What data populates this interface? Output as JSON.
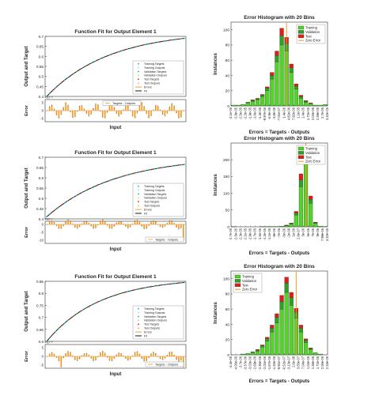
{
  "colors": {
    "training": "#2aa7d8",
    "validation": "#2bb24c",
    "test": "#e0241b",
    "fit": "#000000",
    "errors": "#f7941d",
    "zero_error": "#f7941d",
    "hist_training": "#55d12c",
    "hist_validation": "#2f9e2a",
    "hist_test": "#e21b1b"
  },
  "chart_data": [
    {
      "type": "line",
      "title": "Function Fit for Output Element 1",
      "ylabel": "Output and Target",
      "ylim": [
        0.4,
        0.7
      ],
      "yticks": [
        "0.4",
        "0.45",
        "0.5",
        "0.55",
        "0.6",
        "0.65",
        "0.7"
      ],
      "legend": [
        "Training Targets",
        "Training Outputs",
        "Validation Targets",
        "Validation Outputs",
        "Test Targets",
        "Test Outputs",
        "Errors",
        "Fit"
      ],
      "legend_position": "bottom-right",
      "curve": {
        "start": 0.4,
        "end": 0.69,
        "shape": 2.2
      },
      "error_panel": {
        "ylabel": "Error",
        "xlabel": "Input",
        "yticks": [
          "5",
          "0",
          "-5"
        ],
        "scale": "×10⁻⁴",
        "legend": "Targets - Outputs",
        "legend_position": "top",
        "pattern": {
          "amp": 5,
          "cycles": 9,
          "bars": 60,
          "spike": null
        }
      }
    },
    {
      "type": "bar",
      "title": "Error Histogram with 20 Bins",
      "ylabel": "Instances",
      "xlabel": "Errors = Targets - Outputs",
      "ylim": [
        0,
        110
      ],
      "yticks": [
        0,
        20,
        40,
        60,
        80,
        100
      ],
      "categories": [
        "-3.1e-05",
        "-2.9e-05",
        "-2.5e-05",
        "-2.2e-05",
        "-1.9e-05",
        "-1.6e-05",
        "-1.3e-05",
        "-9.97e-06",
        "-6.9e-06",
        "-3.8e-06",
        "-7.01e-07",
        "2.39e-06",
        "5.48e-06",
        "8.57e-06",
        "1.17e-05",
        "1.48e-05",
        "1.79e-05",
        "2.09e-05",
        "2.4e-05",
        "2.7e-05"
      ],
      "tick_labels": [
        "-3.1e-05",
        "-2.9e-05",
        "-2.5e-05",
        "-2.2e-05",
        "-1.9e-05",
        "-1.6e-05",
        "-1.3e-05",
        "-9.97e-06",
        "-6.9e-06",
        "-3.8e-06",
        "-7.01e-07",
        "1.4e-06",
        "4.82e-06",
        "7.92e-06",
        "1.1e-05",
        "1.4e-05",
        "1.72e-05",
        "2.03e-05",
        "2.39e-05",
        "2.7e-05",
        "3.32e-05"
      ],
      "legend": [
        "Training",
        "Validation",
        "Test",
        "Zero Error"
      ],
      "legend_position": "top-right",
      "zero_error_bin": 11,
      "series": [
        {
          "name": "Training",
          "values": [
            1,
            1,
            2,
            4,
            6,
            8,
            12,
            20,
            35,
            58,
            80,
            72,
            44,
            22,
            10,
            5,
            3,
            1,
            1,
            2
          ]
        },
        {
          "name": "Validation",
          "values": [
            0,
            0,
            0,
            1,
            1,
            1,
            2,
            3,
            5,
            8,
            12,
            10,
            6,
            4,
            2,
            1,
            0,
            0,
            0,
            0
          ]
        },
        {
          "name": "Test",
          "values": [
            0,
            0,
            0,
            0,
            1,
            1,
            1,
            2,
            4,
            6,
            10,
            8,
            5,
            3,
            2,
            1,
            1,
            0,
            0,
            0
          ]
        }
      ]
    },
    {
      "type": "line",
      "title": "Function Fit for Output Element 1",
      "ylabel": "Output and Target",
      "ylim": [
        0.4,
        0.7
      ],
      "yticks": [
        "0.4",
        "0.45",
        "0.5",
        "0.55",
        "0.6",
        "0.65",
        "0.7"
      ],
      "legend": [
        "Training Targets",
        "Training Outputs",
        "Validation Targets",
        "Validation Outputs",
        "Test Targets",
        "Test Outputs",
        "Errors",
        "Fit"
      ],
      "legend_position": "bottom-right",
      "curve": {
        "start": 0.41,
        "end": 0.665,
        "shape": 2.0
      },
      "error_panel": {
        "ylabel": "Error",
        "xlabel": "Input",
        "yticks": [
          "0",
          "-5",
          "-10"
        ],
        "scale": "×10⁻⁴",
        "legend": "Targets - Outputs",
        "legend_position": "bottom-right",
        "pattern": {
          "amp": 3,
          "cycles": 8,
          "bars": 60,
          "spike": -10
        }
      }
    },
    {
      "type": "bar",
      "title": "Error Histogram with 20 Bins",
      "ylabel": "Instances",
      "xlabel": "Errors = Targets - Outputs",
      "ylim": [
        0,
        250
      ],
      "yticks": [
        0,
        50,
        100,
        150,
        200
      ],
      "categories": [
        "-2.7e-05",
        "-2.5e-05",
        "-2.3e-05",
        "-2.1e-05",
        "-1.9e-05",
        "-1.7e-05",
        "-1.5e-05",
        "-1.3e-05",
        "-1.1e-05",
        "-9e-06",
        "-7e-06",
        "-5e-06",
        "-2e-06",
        "1e-06",
        "3e-06",
        "5e-06",
        "7e-06",
        "9e-06",
        "1.2e-05",
        "3.3e-05"
      ],
      "tick_labels": [
        "-2.7e-05",
        "-2.5e-05",
        "-2.3e-05",
        "-2.1e-05",
        "-1.9e-05",
        "-1.7e-05",
        "-1.5e-05",
        "-1.3e-05",
        "-1.1e-05",
        "-9e-06",
        "-7e-06",
        "-5e-06",
        "-2e-06",
        "1e-06",
        "2.6e-07",
        "3e-06",
        "5e-06",
        "7e-06",
        "9e-06",
        "7.99e-06",
        "3.32e-05"
      ],
      "legend": [
        "Training",
        "Validation",
        "Test",
        "Zero Error"
      ],
      "legend_position": "top-right",
      "zero_error_bin": 15,
      "series": [
        {
          "name": "Training",
          "values": [
            1,
            0,
            0,
            0,
            0,
            0,
            1,
            1,
            1,
            1,
            2,
            3,
            8,
            35,
            120,
            195,
            70,
            10,
            2,
            1
          ]
        },
        {
          "name": "Validation",
          "values": [
            0,
            0,
            0,
            0,
            0,
            0,
            0,
            0,
            0,
            0,
            0,
            1,
            2,
            6,
            20,
            25,
            12,
            2,
            0,
            0
          ]
        },
        {
          "name": "Test",
          "values": [
            0,
            0,
            0,
            0,
            0,
            0,
            0,
            0,
            0,
            0,
            0,
            1,
            1,
            5,
            18,
            22,
            10,
            2,
            0,
            0
          ]
        }
      ]
    },
    {
      "type": "line",
      "title": "Function Fit for Output Element 1",
      "ylabel": "Output and Target",
      "ylim": [
        0.6,
        0.85
      ],
      "yticks": [
        "0.6",
        "0.65",
        "0.7",
        "0.75",
        "0.8",
        "0.85"
      ],
      "legend": [
        "Training Targets",
        "Training Outputs",
        "Validation Targets",
        "Validation Outputs",
        "Test Targets",
        "Test Outputs",
        "Errors",
        "Fit"
      ],
      "legend_position": "bottom-right",
      "curve": {
        "start": 0.6,
        "end": 0.845,
        "shape": 2.6
      },
      "error_panel": {
        "ylabel": "Error",
        "xlabel": "Input",
        "yticks": [
          "5",
          "0",
          "-5"
        ],
        "scale": "×10⁻⁵",
        "legend": "Targets - Outputs",
        "legend_position": "bottom-right",
        "pattern": {
          "amp": 3,
          "cycles": 8,
          "bars": 60,
          "spike": -6
        }
      }
    },
    {
      "type": "bar",
      "title": "Error Histogram with 20 Bins",
      "ylabel": "Instances",
      "xlabel": "Errors = Targets - Outputs",
      "ylim": [
        0,
        110
      ],
      "yticks": [
        0,
        20,
        40,
        60,
        80,
        100
      ],
      "categories": [
        "-4.4e-06",
        "-4.1e-06",
        "-3.7e-06",
        "-3.4e-06",
        "-3e-06",
        "-2.7e-06",
        "-2.3e-06",
        "-2e-06",
        "-1.6e-06",
        "-1.3e-06",
        "-9e-07",
        "-6e-07",
        "-2e-07",
        "2e-07",
        "5e-07",
        "9e-07",
        "1.2e-06",
        "1.6e-06",
        "1.9e-06",
        "2.3e-06"
      ],
      "tick_labels": [
        "-4.4e-06",
        "-4.06e-06",
        "-3.7e-06",
        "-3.37e-06",
        "-3.03e-06",
        "-2.69e-06",
        "-2.35e-06",
        "-2.01e-06",
        "-1.67e-06",
        "-1.33e-06",
        "-9.91e-07",
        "-6.52e-07",
        "-3.13e-07",
        "2.6e-08",
        "3.65e-07",
        "7.04e-07",
        "1.04e-06",
        "1.38e-06",
        "1.72e-06",
        "2.06e-06",
        "2.33e-06"
      ],
      "legend": [
        "Training",
        "Validation",
        "Test",
        "Zero Error"
      ],
      "legend_position": "top-left",
      "zero_error_bin": 13,
      "series": [
        {
          "name": "Training",
          "values": [
            0,
            0,
            1,
            2,
            3,
            5,
            10,
            18,
            30,
            42,
            60,
            82,
            65,
            48,
            30,
            16,
            7,
            3,
            1,
            0
          ]
        },
        {
          "name": "Validation",
          "values": [
            0,
            0,
            0,
            0,
            1,
            1,
            2,
            3,
            5,
            7,
            10,
            12,
            10,
            8,
            5,
            3,
            1,
            0,
            0,
            0
          ]
        },
        {
          "name": "Test",
          "values": [
            0,
            0,
            0,
            0,
            0,
            1,
            1,
            2,
            4,
            5,
            8,
            8,
            7,
            5,
            4,
            2,
            1,
            0,
            0,
            0
          ]
        }
      ]
    }
  ]
}
